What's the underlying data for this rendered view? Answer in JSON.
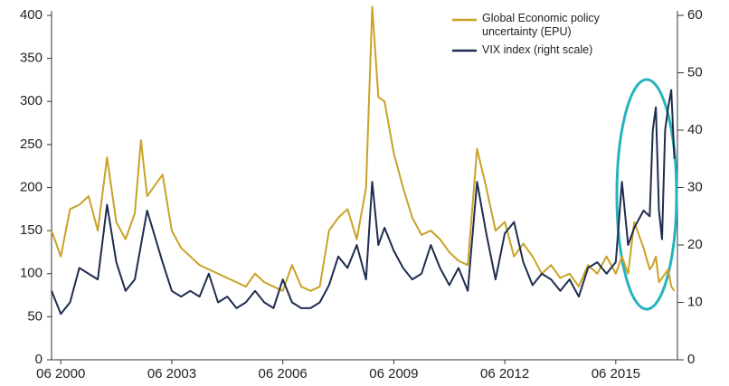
{
  "chart_data": {
    "type": "line",
    "x": [
      "2000-03",
      "2000-06",
      "2000-09",
      "2000-12",
      "2001-03",
      "2001-06",
      "2001-09",
      "2001-12",
      "2002-03",
      "2002-06",
      "2002-08",
      "2002-10",
      "2003-03",
      "2003-06",
      "2003-09",
      "2003-12",
      "2004-03",
      "2004-06",
      "2004-09",
      "2004-12",
      "2005-03",
      "2005-06",
      "2005-09",
      "2005-12",
      "2006-03",
      "2006-06",
      "2006-09",
      "2006-12",
      "2007-03",
      "2007-06",
      "2007-09",
      "2007-12",
      "2008-03",
      "2008-06",
      "2008-09",
      "2008-11",
      "2009-01",
      "2009-03",
      "2009-06",
      "2009-09",
      "2009-12",
      "2010-03",
      "2010-06",
      "2010-09",
      "2010-12",
      "2011-03",
      "2011-06",
      "2011-09",
      "2011-12",
      "2012-03",
      "2012-06",
      "2012-09",
      "2012-12",
      "2013-03",
      "2013-06",
      "2013-09",
      "2013-12",
      "2014-03",
      "2014-06",
      "2014-09",
      "2014-12",
      "2015-03",
      "2015-06",
      "2015-08",
      "2015-10",
      "2015-12",
      "2016-03",
      "2016-05",
      "2016-06",
      "2016-07",
      "2016-08",
      "2016-09",
      "2016-10",
      "2016-11",
      "2016-12",
      "2017-01"
    ],
    "series": [
      {
        "name": "Global Economic policy uncertainty (EPU)",
        "color": "#c9a227",
        "values": [
          150,
          120,
          175,
          180,
          190,
          150,
          235,
          160,
          140,
          170,
          255,
          190,
          215,
          150,
          130,
          120,
          110,
          105,
          100,
          95,
          90,
          85,
          100,
          90,
          85,
          80,
          110,
          85,
          80,
          85,
          150,
          165,
          175,
          140,
          200,
          410,
          305,
          300,
          240,
          200,
          165,
          145,
          150,
          140,
          125,
          115,
          110,
          245,
          200,
          150,
          160,
          120,
          135,
          120,
          100,
          110,
          95,
          100,
          85,
          110,
          100,
          120,
          100,
          120,
          100,
          160,
          130,
          105,
          110,
          120,
          90,
          95,
          100,
          105,
          85,
          80
        ]
      },
      {
        "name": "VIX index (right scale)",
        "color": "#1e2d4f",
        "axis": "y2",
        "values": [
          12,
          8,
          10,
          16,
          15,
          14,
          27,
          17,
          12,
          14,
          20,
          26,
          17,
          12,
          11,
          12,
          11,
          15,
          10,
          11,
          9,
          10,
          12,
          10,
          9,
          14,
          10,
          9,
          9,
          10,
          13,
          18,
          16,
          20,
          14,
          31,
          20,
          23,
          19,
          16,
          14,
          15,
          20,
          16,
          13,
          16,
          12,
          31,
          22,
          14,
          22,
          24,
          17,
          13,
          15,
          14,
          12,
          14,
          11,
          16,
          17,
          15,
          17,
          31,
          20,
          23,
          26,
          25,
          40,
          44,
          26,
          21,
          40,
          44,
          47,
          35
        ]
      }
    ],
    "xlim": [
      "2000-03",
      "2017-02"
    ],
    "xticks": [
      {
        "value": "2000-06",
        "label": "06 2000"
      },
      {
        "value": "2003-06",
        "label": "06 2003"
      },
      {
        "value": "2006-06",
        "label": "06 2006"
      },
      {
        "value": "2009-06",
        "label": "06 2009"
      },
      {
        "value": "2012-06",
        "label": "06 2012"
      },
      {
        "value": "2015-06",
        "label": "06 2015"
      }
    ],
    "ylim": [
      0,
      400
    ],
    "yticks": [
      0,
      50,
      100,
      150,
      200,
      250,
      300,
      350,
      400
    ],
    "y2lim": [
      0,
      60
    ],
    "y2ticks": [
      0,
      10,
      20,
      30,
      40,
      50,
      60
    ],
    "grid": false
  }
}
